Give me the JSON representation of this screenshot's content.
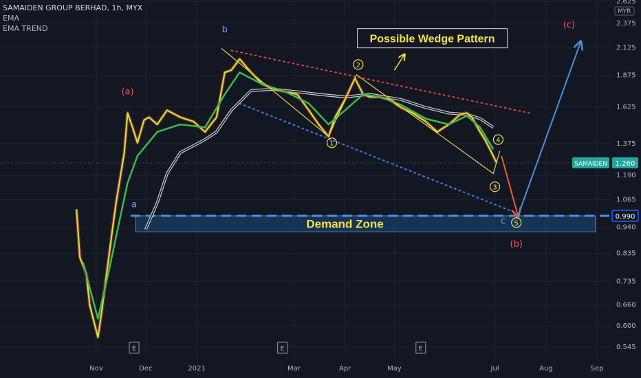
{
  "legend": {
    "title": "SAMAIDEN GROUP BERHAD, 1h, MYX",
    "indicator_1": "EMA",
    "indicator_2": "EMA TREND"
  },
  "colors": {
    "background": "#131722",
    "grid": "#1e2230",
    "axis_text": "#b2b5be",
    "price_line": "#c8e640",
    "ema_fast": "#3fb950",
    "ema_trend": "#e6e6e6",
    "wedge_upper": "#e0433c",
    "wedge_lower": "#3b82f6",
    "wave_lines": "#e8d34a",
    "projection_blue": "#4a90e2",
    "projection_red": "#ef5a3c",
    "demand_zone_fill": "#1a4d7a",
    "demand_zone_border": "#4a90e2",
    "price_badge": "#26a69a",
    "level_badge": "#2962ff",
    "annot_red": "#f05454",
    "annot_blue": "#5aa2ff",
    "annot_yellow": "#f5e14a"
  },
  "chart_data": {
    "type": "line",
    "title": "SAMAIDEN GROUP BERHAD, 1h, MYX",
    "currency": "MYR",
    "y_scale": "log",
    "ylim": [
      0.52,
      2.7
    ],
    "y_ticks": [
      "0.545",
      "0.600",
      "0.660",
      "0.735",
      "0.835",
      "0.940",
      "1.065",
      "1.190",
      "1.375",
      "1.625",
      "1.875",
      "2.125",
      "2.375",
      "2.625"
    ],
    "x_ticks": [
      "Nov",
      "Dec",
      "2021",
      "Mar",
      "Apr",
      "May",
      "Jul",
      "Aug",
      "Sep"
    ],
    "grid": true,
    "series": [
      {
        "style": "close",
        "x": [
          "2020-10-20",
          "2020-10-22",
          "2020-10-26",
          "2020-10-28",
          "2020-11-02",
          "2020-11-04",
          "2020-11-09",
          "2020-11-11",
          "2020-11-13",
          "2020-11-18",
          "2020-11-20",
          "2020-11-23",
          "2020-11-26",
          "2020-11-30",
          "2020-12-03",
          "2020-12-08",
          "2020-12-14",
          "2020-12-22",
          "2020-12-30",
          "2021-01-06",
          "2021-01-13",
          "2021-01-18",
          "2021-01-22",
          "2021-01-27",
          "2021-02-03",
          "2021-02-10",
          "2021-02-17",
          "2021-02-24",
          "2021-03-03",
          "2021-03-10",
          "2021-03-16",
          "2021-03-22",
          "2021-03-26",
          "2021-04-01",
          "2021-04-07",
          "2021-04-12",
          "2021-04-16",
          "2021-04-22",
          "2021-04-28",
          "2021-05-05",
          "2021-05-12",
          "2021-05-20",
          "2021-05-27",
          "2021-06-03",
          "2021-06-10",
          "2021-06-14",
          "2021-06-17",
          "2021-06-22",
          "2021-06-25",
          "2021-06-30",
          "2021-07-02"
        ],
        "y": [
          1.02,
          0.82,
          0.76,
          0.66,
          0.57,
          0.63,
          0.84,
          0.94,
          1.05,
          1.32,
          1.58,
          1.48,
          1.38,
          1.53,
          1.55,
          1.5,
          1.6,
          1.55,
          1.52,
          1.45,
          1.55,
          1.9,
          1.92,
          2.02,
          1.9,
          1.8,
          1.76,
          1.74,
          1.72,
          1.6,
          1.5,
          1.42,
          1.55,
          1.68,
          1.85,
          1.72,
          1.7,
          1.7,
          1.68,
          1.62,
          1.58,
          1.52,
          1.45,
          1.5,
          1.57,
          1.58,
          1.55,
          1.45,
          1.4,
          1.3,
          1.26
        ]
      },
      {
        "name": "EMA",
        "x": [
          "2020-10-24",
          "2020-11-02",
          "2020-11-09",
          "2020-11-13",
          "2020-11-20",
          "2020-11-26",
          "2020-12-08",
          "2020-12-22",
          "2021-01-06",
          "2021-01-18",
          "2021-01-27",
          "2021-02-10",
          "2021-02-24",
          "2021-03-10",
          "2021-03-22",
          "2021-04-01",
          "2021-04-12",
          "2021-04-22",
          "2021-05-05",
          "2021-05-20",
          "2021-06-03",
          "2021-06-14",
          "2021-06-22",
          "2021-06-30"
        ],
        "y": [
          0.8,
          0.62,
          0.78,
          0.9,
          1.15,
          1.3,
          1.45,
          1.5,
          1.48,
          1.72,
          1.9,
          1.8,
          1.74,
          1.65,
          1.5,
          1.6,
          1.72,
          1.7,
          1.64,
          1.54,
          1.5,
          1.56,
          1.48,
          1.34
        ]
      },
      {
        "name": "EMA TREND",
        "x": [
          "2020-12-01",
          "2020-12-08",
          "2020-12-14",
          "2020-12-22",
          "2021-01-06",
          "2021-01-13",
          "2021-01-22",
          "2021-02-03",
          "2021-02-17",
          "2021-03-03",
          "2021-03-16",
          "2021-04-01",
          "2021-04-16",
          "2021-05-05",
          "2021-05-20",
          "2021-06-03",
          "2021-06-14",
          "2021-06-22",
          "2021-06-30"
        ],
        "y": [
          0.93,
          1.05,
          1.2,
          1.32,
          1.4,
          1.45,
          1.6,
          1.75,
          1.76,
          1.74,
          1.72,
          1.7,
          1.72,
          1.68,
          1.62,
          1.58,
          1.57,
          1.54,
          1.48
        ]
      }
    ],
    "trendlines": [
      {
        "kind": "wedge_resistance",
        "from": [
          "2021-01-22",
          2.1
        ],
        "to": [
          "2021-07-22",
          1.58
        ]
      },
      {
        "kind": "wedge_support",
        "from": [
          "2021-01-27",
          1.65
        ],
        "to": [
          "2021-07-15",
          1.0
        ]
      },
      {
        "kind": "wave",
        "points": [
          [
            "2021-01-16",
            2.12
          ],
          [
            "2021-03-22",
            1.42
          ],
          [
            "2021-04-08",
            1.88
          ],
          [
            "2021-06-30",
            1.2
          ],
          [
            "2021-07-04",
            1.33
          ]
        ]
      },
      {
        "kind": "projection_down",
        "from": [
          "2021-07-05",
          1.3
        ],
        "to": [
          "2021-07-15",
          0.99
        ]
      },
      {
        "kind": "projection_up",
        "from": [
          "2021-07-15",
          0.99
        ],
        "to": [
          "2021-08-22",
          2.18
        ]
      },
      {
        "kind": "callout_arrow",
        "from": [
          "2021-05-01",
          1.92
        ],
        "to": [
          "2021-05-07",
          2.06
        ]
      }
    ],
    "zones": [
      {
        "label": "Demand Zone",
        "from": "2020-11-25",
        "to": "2021-08-31",
        "low": 0.92,
        "high": 0.99
      }
    ],
    "levels": [
      {
        "value": 0.99,
        "label": "0.990",
        "style": "dashed"
      }
    ],
    "last_price": {
      "label": "SAMAIDEN",
      "value": "1.260"
    },
    "markers_E": [
      "2020-11-24",
      "2021-02-22",
      "2021-05-17"
    ],
    "annotations": [
      {
        "text": "(a)",
        "x": "2020-11-20",
        "y": 1.72,
        "color": "red",
        "circled": false
      },
      {
        "text": "a",
        "x": "2020-11-24",
        "y": 1.03,
        "color": "blue",
        "circled": false
      },
      {
        "text": "b",
        "x": "2021-01-18",
        "y": 2.28,
        "color": "blue",
        "circled": false
      },
      {
        "text": "Possible Wedge Pattern",
        "x": "2021-05-24",
        "y": 2.22,
        "color": "yellow",
        "circled": false,
        "boxed": true
      },
      {
        "text": "(c)",
        "x": "2021-08-15",
        "y": 2.33,
        "color": "red",
        "circled": false
      },
      {
        "text": "1",
        "x": "2021-03-24",
        "y": 1.38,
        "color": "yellow",
        "circled": true
      },
      {
        "text": "2",
        "x": "2021-04-09",
        "y": 1.97,
        "color": "yellow",
        "circled": true
      },
      {
        "text": "4",
        "x": "2021-07-03",
        "y": 1.4,
        "color": "yellow",
        "circled": true
      },
      {
        "text": "3",
        "x": "2021-07-01",
        "y": 1.13,
        "color": "yellow",
        "circled": true
      },
      {
        "text": "5",
        "x": "2021-07-14",
        "y": 0.96,
        "color": "yellow",
        "circled": true
      },
      {
        "text": "c",
        "x": "2021-07-06",
        "y": 0.955,
        "color": "blue",
        "circled": false
      },
      {
        "text": "(b)",
        "x": "2021-07-14",
        "y": 0.86,
        "color": "red",
        "circled": false
      }
    ]
  }
}
